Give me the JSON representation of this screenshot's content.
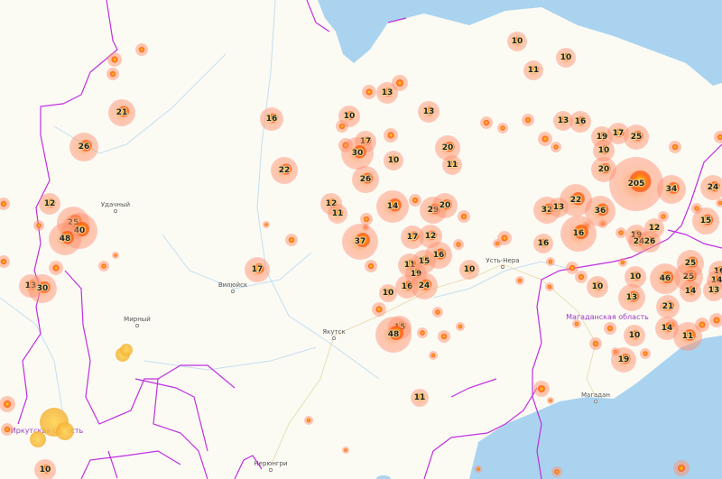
{
  "map": {
    "colors": {
      "land": "#fbfbf4",
      "sea": "#aad3ef",
      "border": "#c02ee0",
      "river": "#b9d8ee",
      "fire_core": "#ff3a00",
      "fire_halo": "#ff9a70"
    },
    "cities": [
      "Удачный",
      "Вилюйск",
      "Мирный",
      "Якутск",
      "Усть-Нера",
      "Магадан",
      "Нерюнгри"
    ],
    "regions": [
      "Магаданская область",
      "Иркутская область"
    ],
    "fire_clusters": [
      "21",
      "26",
      "16",
      "22",
      "10",
      "13",
      "17",
      "30",
      "10",
      "26",
      "13",
      "20",
      "11",
      "12",
      "11",
      "14",
      "29",
      "20",
      "37",
      "17",
      "12",
      "16",
      "15",
      "11",
      "19",
      "16",
      "24",
      "10",
      "10",
      "15",
      "48",
      "11",
      "10",
      "10",
      "11",
      "13",
      "16",
      "19",
      "17",
      "25",
      "10",
      "20",
      "205",
      "34",
      "22",
      "32",
      "13",
      "36",
      "16",
      "16",
      "19",
      "24",
      "26",
      "12",
      "24",
      "15",
      "10",
      "46",
      "25",
      "25",
      "14",
      "16",
      "14",
      "13",
      "13",
      "10",
      "21",
      "14",
      "11",
      "10",
      "19",
      "12",
      "25",
      "40",
      "48",
      "13",
      "30",
      "17",
      "10"
    ]
  }
}
